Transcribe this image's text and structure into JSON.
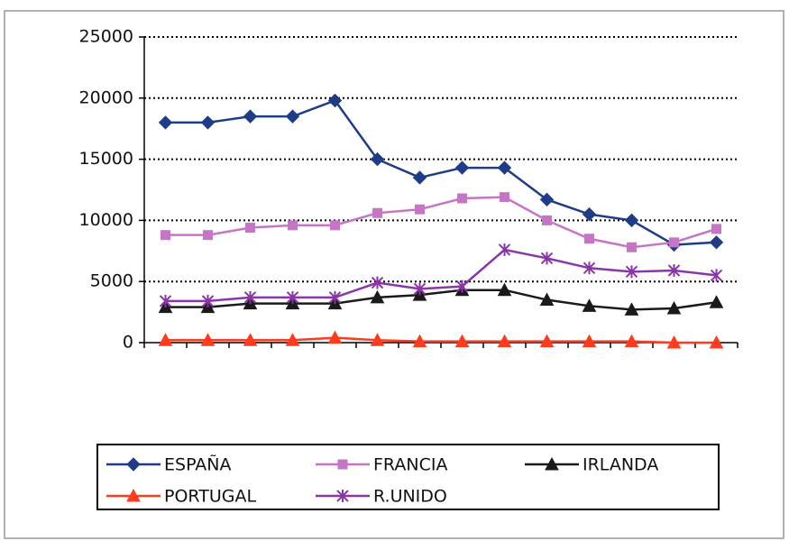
{
  "chart_data": {
    "type": "line",
    "categories": [
      null,
      null,
      null,
      null,
      null,
      null,
      null,
      null,
      null,
      null,
      null,
      null,
      null,
      null
    ],
    "series": [
      {
        "name": "ESPAÑA",
        "color": "#1f3c88",
        "marker": "diamond",
        "values": [
          18000,
          18000,
          18500,
          18500,
          19800,
          15000,
          13500,
          14300,
          14300,
          11700,
          10500,
          10000,
          8000,
          8200
        ]
      },
      {
        "name": "FRANCIA",
        "color": "#c674c6",
        "marker": "square",
        "values": [
          8800,
          8800,
          9400,
          9600,
          9600,
          10600,
          10900,
          11800,
          11900,
          10000,
          8500,
          7800,
          8200,
          9300
        ]
      },
      {
        "name": "IRLANDA",
        "color": "#1a1a1a",
        "marker": "triangle",
        "values": [
          2900,
          2900,
          3200,
          3200,
          3200,
          3700,
          3900,
          4300,
          4300,
          3500,
          3000,
          2700,
          2800,
          3300
        ]
      },
      {
        "name": "PORTUGAL",
        "color": "#ff3b1f",
        "marker": "triangle",
        "values": [
          200,
          200,
          200,
          200,
          400,
          200,
          100,
          100,
          100,
          100,
          100,
          100,
          0,
          0
        ]
      },
      {
        "name": "R.UNIDO",
        "color": "#8a35a8",
        "marker": "star",
        "values": [
          3400,
          3400,
          3700,
          3700,
          3700,
          4900,
          4400,
          4600,
          7600,
          6900,
          6100,
          5800,
          5900,
          5500
        ]
      }
    ],
    "ylim": [
      0,
      25000
    ],
    "yticks": [
      0,
      5000,
      10000,
      15000,
      20000,
      25000
    ],
    "grid": true,
    "legend": "bottom"
  }
}
